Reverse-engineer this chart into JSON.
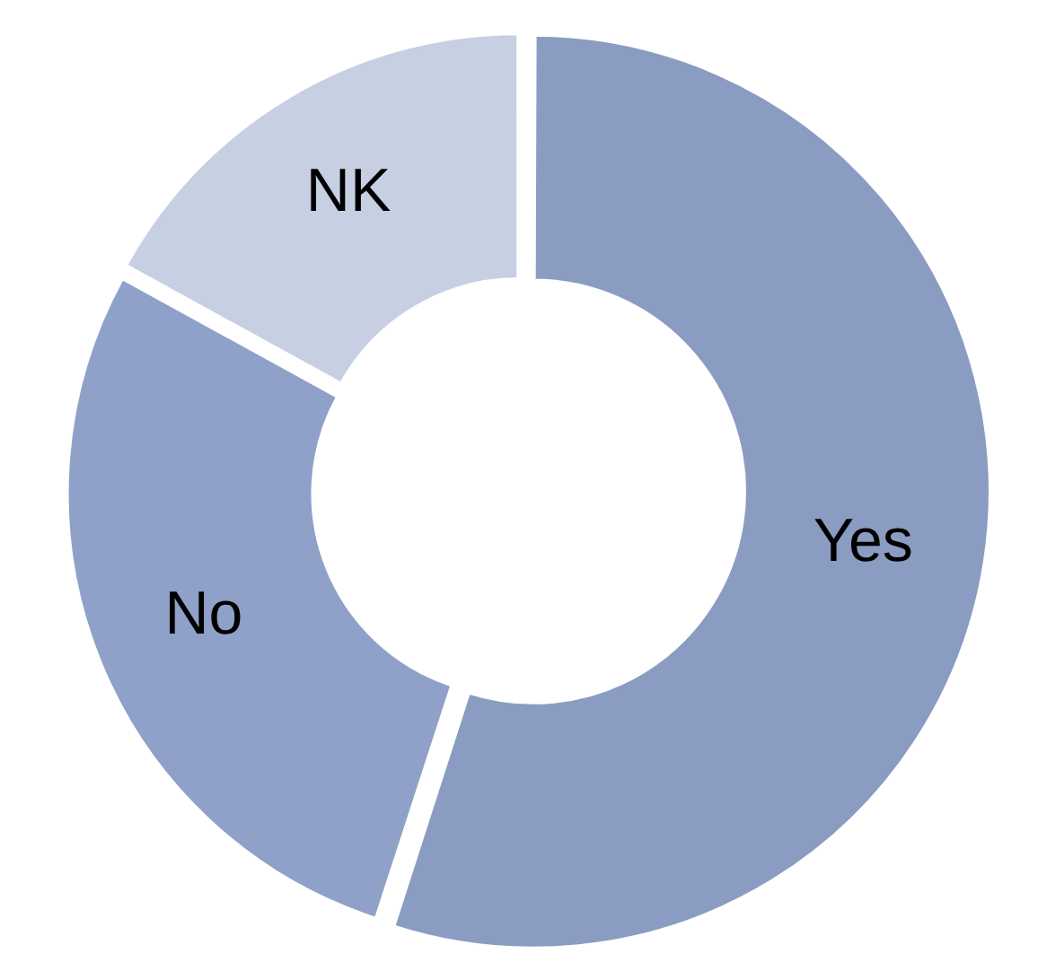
{
  "chart_data": {
    "type": "donut",
    "categories": [
      "Yes",
      "No",
      "NK"
    ],
    "values": [
      55,
      28,
      17
    ],
    "colors": [
      "#8a9cc2",
      "#8fa1c8",
      "#c7cfe2"
    ],
    "legend": false
  }
}
